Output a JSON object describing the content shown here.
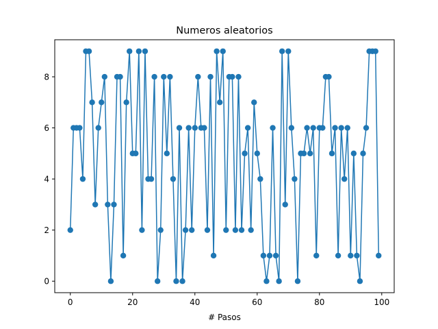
{
  "chart_data": {
    "type": "line",
    "title": "Numeros aleatorios",
    "xlabel": "# Pasos",
    "ylabel": "",
    "xlim": [
      -5,
      104
    ],
    "ylim": [
      -0.45,
      9.45
    ],
    "xticks": [
      0,
      20,
      40,
      60,
      80,
      100
    ],
    "yticks": [
      0,
      2,
      4,
      6,
      8
    ],
    "grid": false,
    "legend": "none",
    "markers": true,
    "series": [
      {
        "color": "#1f77b4",
        "x": [
          0,
          1,
          2,
          3,
          4,
          5,
          6,
          7,
          8,
          9,
          10,
          11,
          12,
          13,
          14,
          15,
          16,
          17,
          18,
          19,
          20,
          21,
          22,
          23,
          24,
          25,
          26,
          27,
          28,
          29,
          30,
          31,
          32,
          33,
          34,
          35,
          36,
          37,
          38,
          39,
          40,
          41,
          42,
          43,
          44,
          45,
          46,
          47,
          48,
          49,
          50,
          51,
          52,
          53,
          54,
          55,
          56,
          57,
          58,
          59,
          60,
          61,
          62,
          63,
          64,
          65,
          66,
          67,
          68,
          69,
          70,
          71,
          72,
          73,
          74,
          75,
          76,
          77,
          78,
          79,
          80,
          81,
          82,
          83,
          84,
          85,
          86,
          87,
          88,
          89,
          90,
          91,
          92,
          93,
          94,
          95,
          96,
          97,
          98,
          99
        ],
        "y": [
          2,
          6,
          6,
          6,
          4,
          9,
          9,
          7,
          3,
          6,
          7,
          8,
          3,
          0,
          3,
          8,
          8,
          1,
          7,
          9,
          5,
          5,
          9,
          2,
          9,
          4,
          4,
          8,
          0,
          2,
          8,
          5,
          8,
          4,
          0,
          6,
          0,
          2,
          6,
          2,
          6,
          8,
          6,
          6,
          2,
          8,
          1,
          9,
          7,
          9,
          2,
          8,
          8,
          2,
          8,
          2,
          5,
          6,
          2,
          7,
          5,
          4,
          1,
          0,
          1,
          6,
          1,
          0,
          9,
          3,
          9,
          6,
          4,
          0,
          5,
          5,
          6,
          5,
          6,
          1,
          6,
          6,
          8,
          8,
          5,
          6,
          1,
          6,
          4,
          6,
          1,
          5,
          1,
          0,
          5,
          6,
          9,
          9,
          9,
          1
        ]
      }
    ]
  }
}
